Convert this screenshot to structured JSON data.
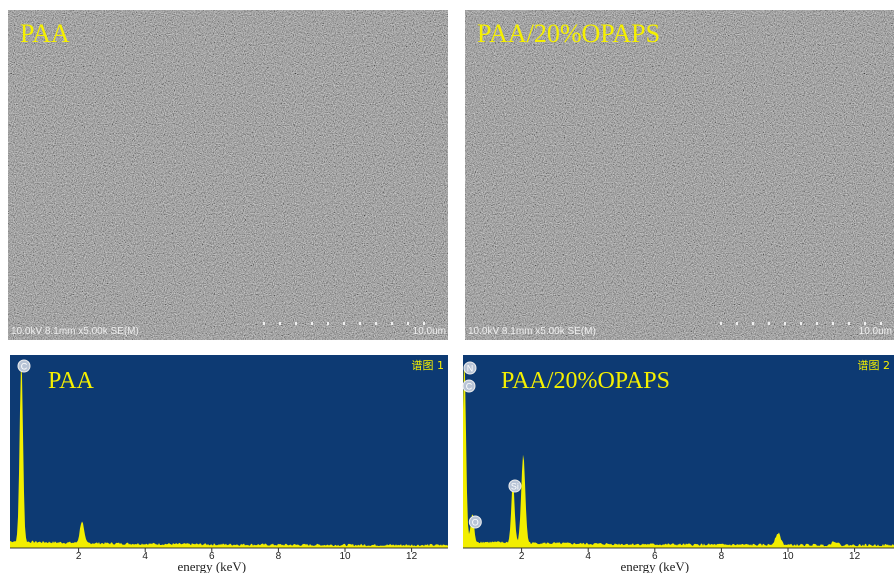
{
  "panels": [
    {
      "label": "PAA",
      "info": "10.0kV 8.1mm x5.00k SE(M)",
      "scale": "10.0um"
    },
    {
      "label": "PAA/20%OPAPS",
      "info": "10.0kV 8.1mm x5.00k SE(M)",
      "scale": "10.0um"
    }
  ],
  "spectra": [
    {
      "label": "PAA",
      "tag": "谱图 1",
      "elements": [
        "C"
      ],
      "x_label": "energy (keV)",
      "xticks": [
        2,
        4,
        6,
        8,
        10,
        12
      ]
    },
    {
      "label": "PAA/20%OPAPS",
      "tag": "谱图 2",
      "elements": [
        "N",
        "C",
        "O",
        "Si"
      ],
      "x_label": "energy (keV)",
      "xticks": [
        2,
        4,
        6,
        8,
        10,
        12
      ]
    }
  ]
}
